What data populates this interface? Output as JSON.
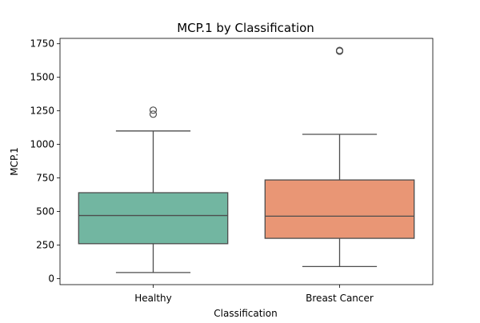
{
  "chart_data": {
    "type": "box",
    "title": "MCP.1 by Classification",
    "xlabel": "Classification",
    "ylabel": "MCP.1",
    "ylim": [
      -45,
      1790
    ],
    "yticks": [
      0,
      250,
      500,
      750,
      1000,
      1250,
      1500,
      1750
    ],
    "ytick_labels": [
      "0",
      "250",
      "500",
      "750",
      "1000",
      "1250",
      "1500",
      "1750"
    ],
    "grid": false,
    "categories": [
      "Healthy",
      "Breast Cancer"
    ],
    "boxes": [
      {
        "category": "Healthy",
        "color": "#72b6a1",
        "whisker_low": 45,
        "q1": 260,
        "median": 470,
        "q3": 640,
        "whisker_high": 1100,
        "outliers": [
          1225,
          1255
        ]
      },
      {
        "category": "Breast Cancer",
        "color": "#e99675",
        "whisker_low": 90,
        "q1": 300,
        "median": 465,
        "q3": 735,
        "whisker_high": 1075,
        "outliers": [
          1695,
          1700
        ]
      }
    ],
    "colors": {
      "line": "#4d4d4d",
      "frame": "#000000"
    }
  }
}
